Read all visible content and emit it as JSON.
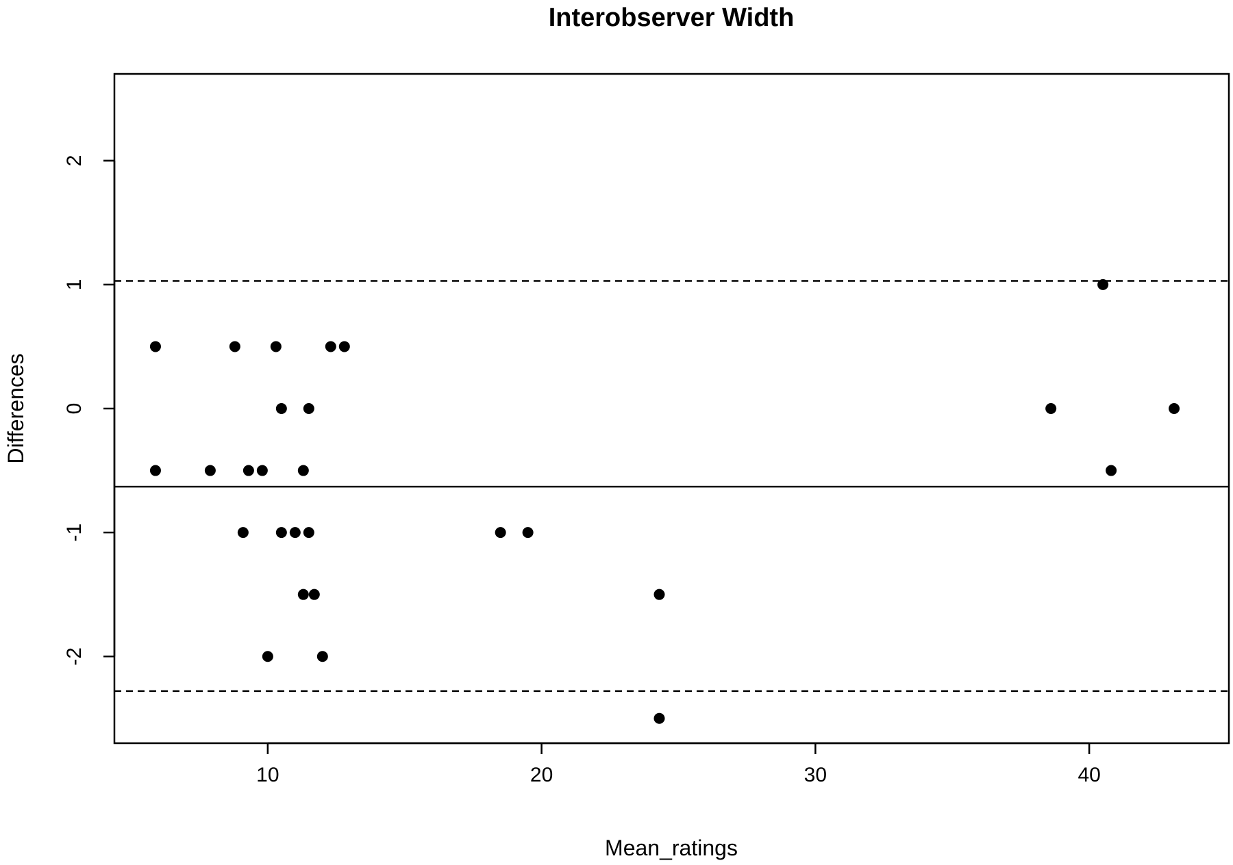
{
  "chart_data": {
    "type": "scatter",
    "title": "Interobserver Width",
    "xlabel": "Mean_ratings",
    "ylabel": "Differences",
    "xlim": [
      4.4,
      45.1
    ],
    "ylim": [
      -2.7,
      2.7
    ],
    "x_ticks": [
      10,
      20,
      30,
      40
    ],
    "y_ticks": [
      -2,
      -1,
      0,
      1,
      2
    ],
    "grid": false,
    "legend": "none",
    "reference_lines": {
      "mean_difference": -0.63,
      "upper_limit": 1.03,
      "lower_limit": -2.28
    },
    "series": [
      {
        "points": [
          {
            "x": 5.9,
            "y": 0.5
          },
          {
            "x": 8.8,
            "y": 0.5
          },
          {
            "x": 10.3,
            "y": 0.5
          },
          {
            "x": 12.3,
            "y": 0.5
          },
          {
            "x": 12.8,
            "y": 0.5
          },
          {
            "x": 10.5,
            "y": 0.0
          },
          {
            "x": 11.5,
            "y": 0.0
          },
          {
            "x": 38.6,
            "y": 0.0
          },
          {
            "x": 43.1,
            "y": 0.0
          },
          {
            "x": 40.5,
            "y": 1.0
          },
          {
            "x": 5.9,
            "y": -0.5
          },
          {
            "x": 7.9,
            "y": -0.5
          },
          {
            "x": 9.3,
            "y": -0.5
          },
          {
            "x": 9.8,
            "y": -0.5
          },
          {
            "x": 11.3,
            "y": -0.5
          },
          {
            "x": 40.8,
            "y": -0.5
          },
          {
            "x": 9.1,
            "y": -1.0
          },
          {
            "x": 10.5,
            "y": -1.0
          },
          {
            "x": 11.0,
            "y": -1.0
          },
          {
            "x": 11.5,
            "y": -1.0
          },
          {
            "x": 18.5,
            "y": -1.0
          },
          {
            "x": 19.5,
            "y": -1.0
          },
          {
            "x": 11.3,
            "y": -1.5
          },
          {
            "x": 11.7,
            "y": -1.5
          },
          {
            "x": 24.3,
            "y": -1.5
          },
          {
            "x": 10.0,
            "y": -2.0
          },
          {
            "x": 12.0,
            "y": -2.0
          },
          {
            "x": 24.3,
            "y": -2.5
          }
        ]
      }
    ]
  }
}
